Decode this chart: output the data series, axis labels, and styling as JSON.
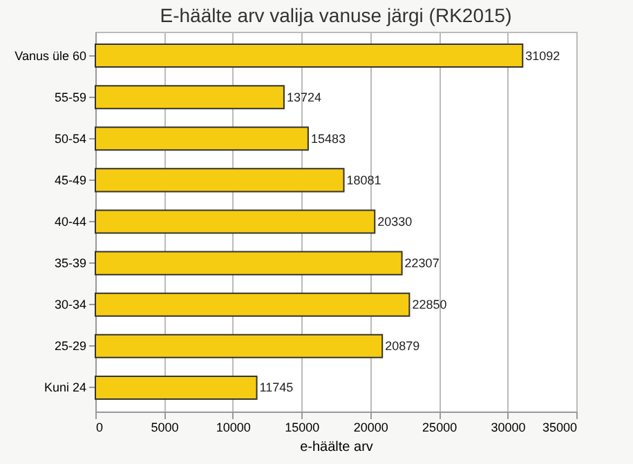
{
  "chart_data": {
    "type": "bar",
    "orientation": "horizontal",
    "title": "E-häälte arv valija vanuse järgi (RK2015)",
    "xlabel": "e-häälte arv",
    "categories": [
      "Vanus üle 60",
      "55-59",
      "50-54",
      "45-49",
      "40-44",
      "35-39",
      "30-34",
      "25-29",
      "Kuni 24"
    ],
    "values": [
      31092,
      13724,
      15483,
      18081,
      20330,
      22307,
      22850,
      20879,
      11745
    ],
    "color": "#f5cc12",
    "xlim": [
      0,
      35000
    ],
    "xticks": [
      0,
      5000,
      10000,
      15000,
      20000,
      25000,
      30000,
      35000
    ],
    "grid": "x",
    "data_labels": true
  }
}
